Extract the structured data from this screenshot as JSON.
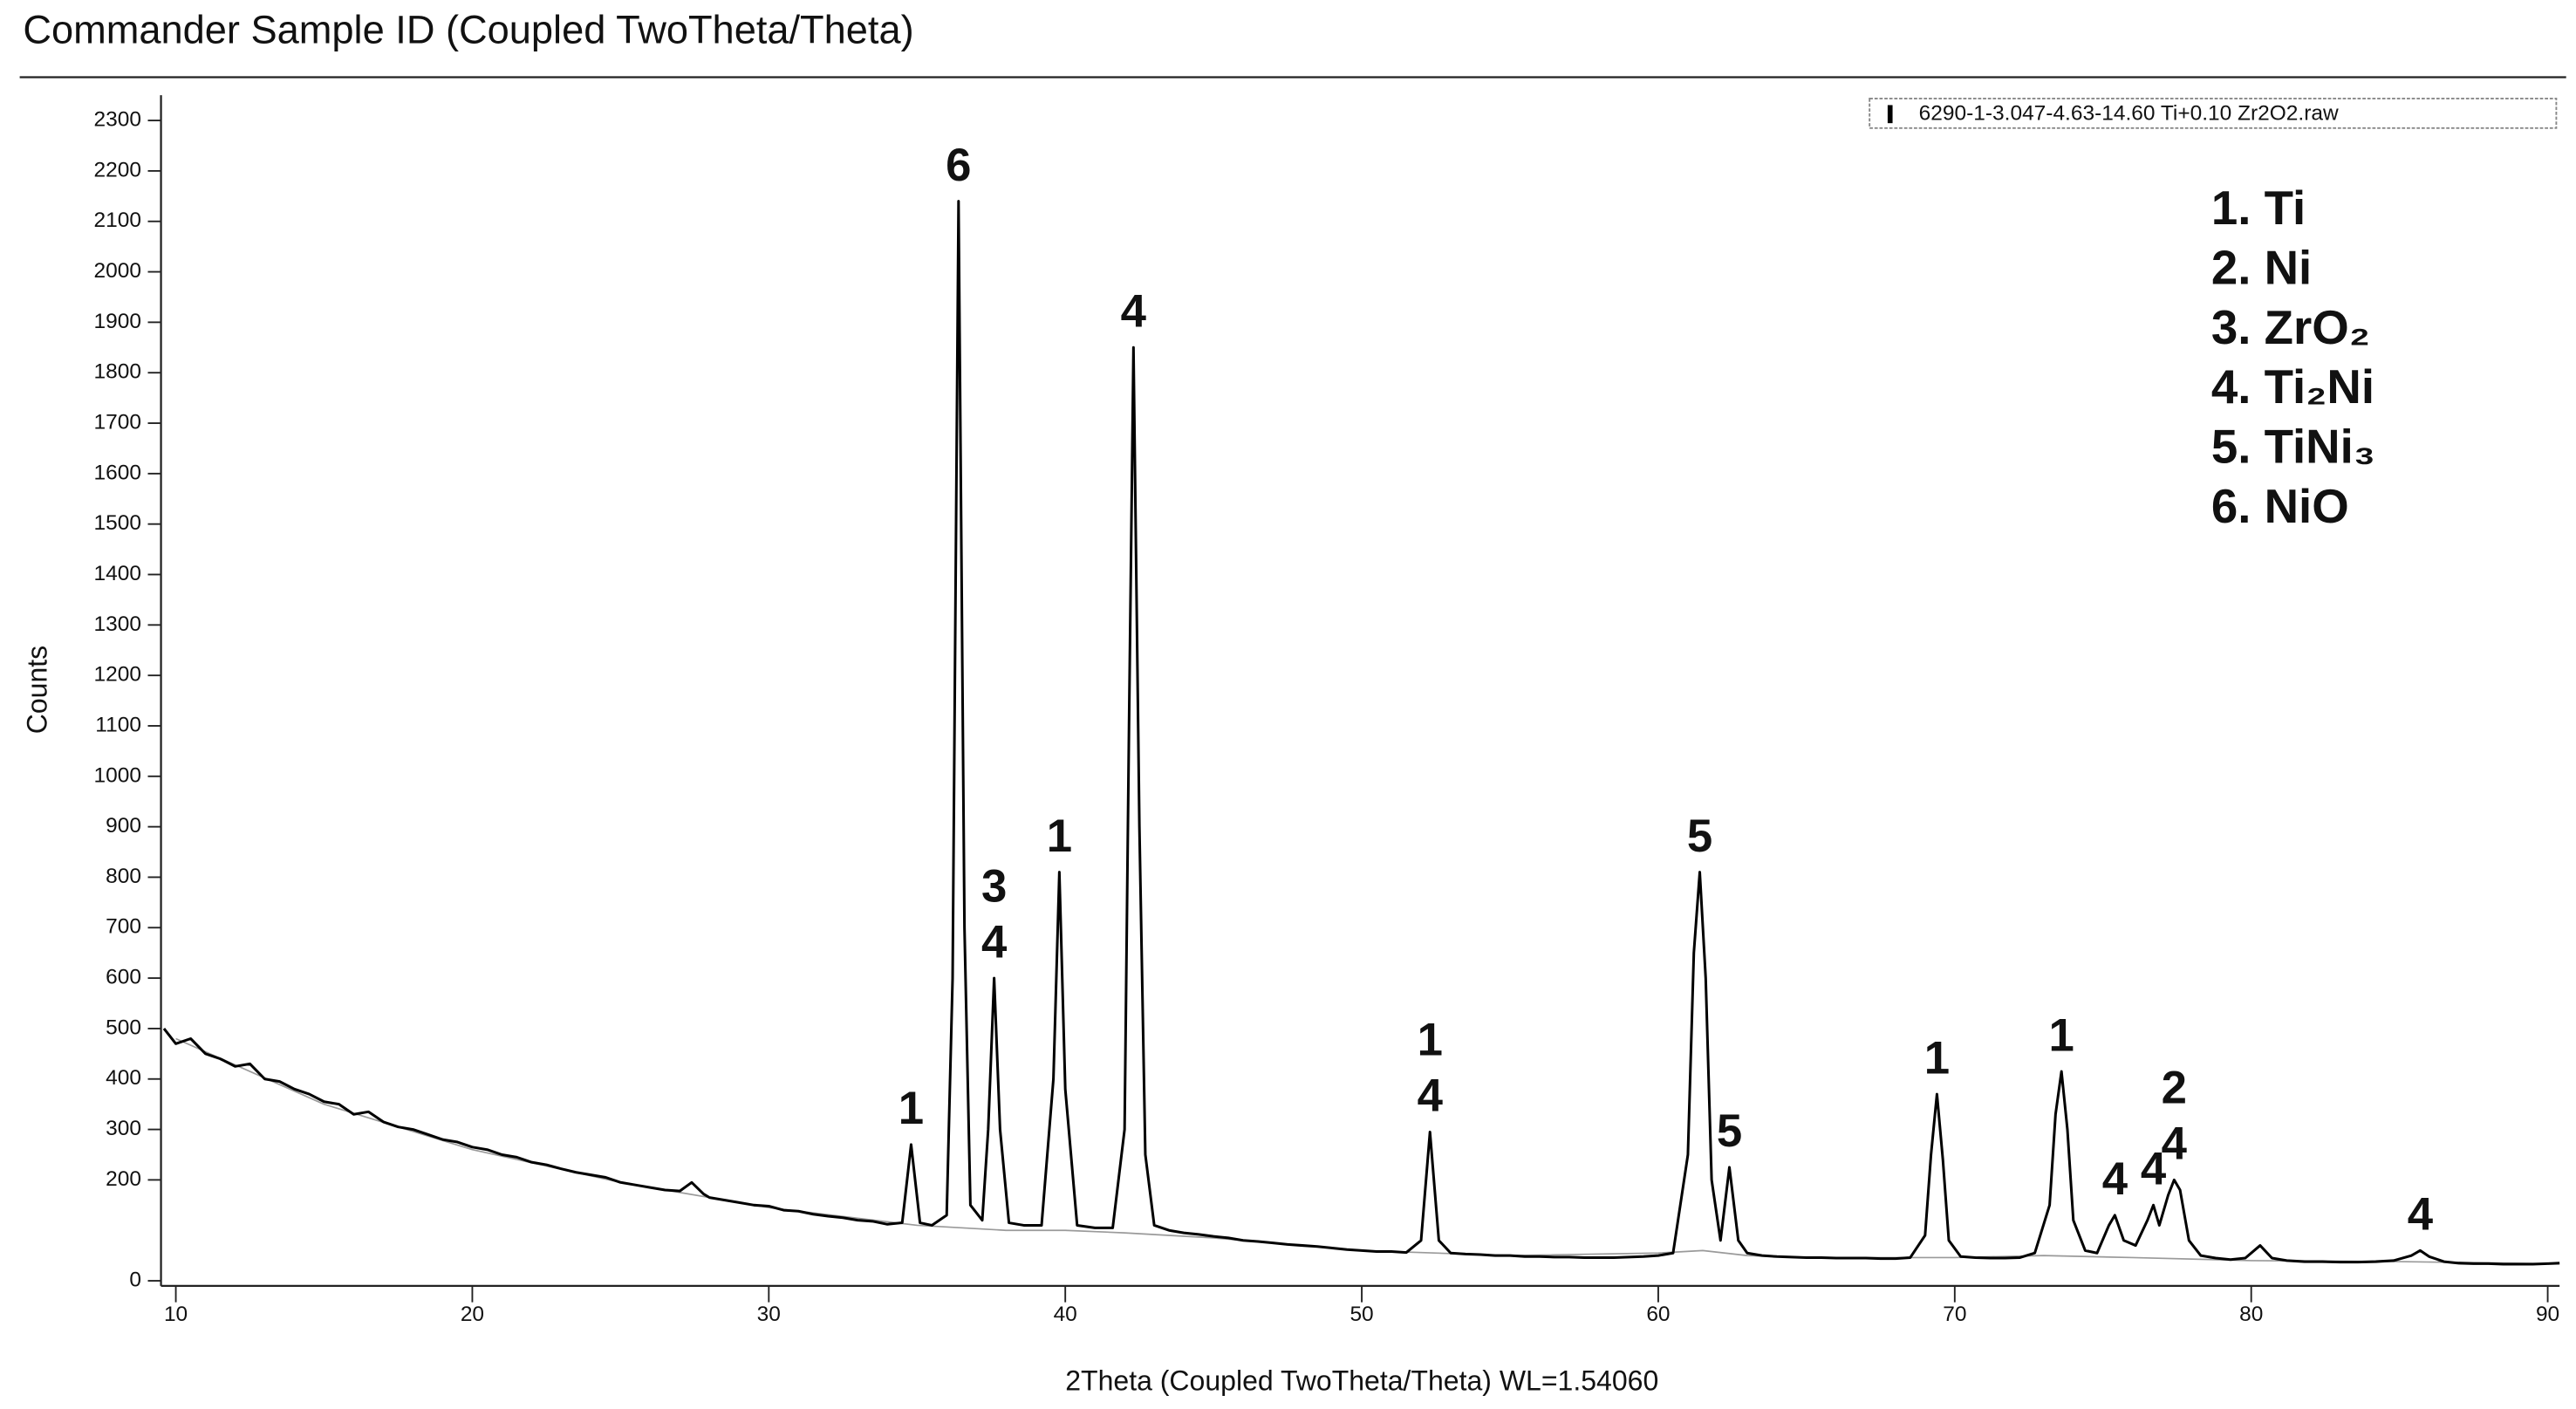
{
  "chart_data": {
    "type": "line",
    "title": "Commander Sample ID (Coupled TwoTheta/Theta)",
    "x_label": "2Theta (Coupled TwoTheta/Theta) WL=1.54060",
    "y_label": "Counts",
    "xlim": [
      9.5,
      90.4
    ],
    "ylim": [
      -10,
      2350
    ],
    "xticks": [
      10,
      20,
      30,
      40,
      50,
      60,
      70,
      80,
      90
    ],
    "yticks": [
      0,
      200,
      300,
      400,
      500,
      600,
      700,
      800,
      900,
      1000,
      1100,
      1200,
      1300,
      1400,
      1500,
      1600,
      1700,
      1800,
      1900,
      2000,
      2100,
      2200,
      2300
    ],
    "series": [
      {
        "name": "6290-1-3.047-4.63-14.60 Ti+0.10 Zr2O2.raw",
        "color": "#000000",
        "x": [
          9.6,
          10,
          10.5,
          11,
          11.5,
          12,
          12.5,
          13,
          13.5,
          14,
          14.5,
          15,
          15.5,
          16,
          16.5,
          17,
          17.5,
          18,
          18.5,
          19,
          19.5,
          20,
          20.5,
          21,
          21.5,
          22,
          22.5,
          23,
          23.5,
          24,
          24.5,
          25,
          25.5,
          26,
          26.5,
          27,
          27.4,
          27.8,
          28,
          28.5,
          29,
          29.5,
          30,
          30.5,
          31,
          31.5,
          32,
          32.5,
          33,
          33.5,
          34,
          34.5,
          34.8,
          35.1,
          35.5,
          36,
          36.2,
          36.4,
          36.6,
          36.8,
          37.2,
          37.4,
          37.6,
          37.8,
          38.1,
          38.6,
          39.2,
          39.6,
          39.8,
          40,
          40.4,
          41,
          41.6,
          42,
          42.15,
          42.3,
          42.5,
          42.7,
          43,
          43.5,
          44,
          44.5,
          45,
          45.5,
          46,
          46.5,
          47,
          47.5,
          48,
          48.5,
          49,
          49.5,
          50,
          50.5,
          51,
          51.5,
          52,
          52.3,
          52.6,
          53,
          53.5,
          54,
          54.5,
          55,
          55.5,
          56,
          56.5,
          57,
          57.5,
          58,
          58.5,
          59,
          59.5,
          60,
          60.5,
          61,
          61.2,
          61.4,
          61.6,
          61.8,
          62.1,
          62.4,
          62.7,
          63,
          63.5,
          64,
          64.5,
          65,
          65.5,
          66,
          66.5,
          67,
          67.5,
          68,
          68.5,
          69,
          69.2,
          69.4,
          69.6,
          69.8,
          70.2,
          70.7,
          71.2,
          71.7,
          72.2,
          72.7,
          73.2,
          73.4,
          73.6,
          73.8,
          74,
          74.4,
          74.8,
          75.2,
          75.4,
          75.7,
          76.1,
          76.5,
          76.7,
          76.9,
          77.2,
          77.4,
          77.6,
          77.9,
          78.3,
          78.8,
          79.3,
          79.8,
          80.3,
          80.7,
          81.2,
          81.8,
          82.4,
          83,
          83.6,
          84.2,
          84.8,
          85.4,
          85.7,
          86,
          86.5,
          87,
          87.5,
          88,
          88.5,
          89,
          89.5,
          90,
          90.4
        ],
        "values": [
          500,
          470,
          480,
          450,
          440,
          425,
          430,
          400,
          395,
          380,
          370,
          355,
          350,
          330,
          335,
          315,
          305,
          300,
          290,
          280,
          275,
          265,
          260,
          250,
          245,
          235,
          230,
          222,
          215,
          210,
          205,
          195,
          190,
          185,
          180,
          178,
          195,
          172,
          165,
          160,
          155,
          150,
          148,
          140,
          138,
          132,
          128,
          125,
          120,
          118,
          112,
          115,
          270,
          115,
          110,
          130,
          600,
          2140,
          700,
          150,
          120,
          300,
          600,
          300,
          115,
          110,
          110,
          400,
          810,
          380,
          110,
          105,
          105,
          300,
          1100,
          1850,
          900,
          250,
          110,
          100,
          95,
          92,
          88,
          85,
          80,
          78,
          75,
          72,
          70,
          68,
          65,
          62,
          60,
          58,
          58,
          56,
          80,
          295,
          80,
          55,
          53,
          52,
          50,
          50,
          48,
          48,
          47,
          47,
          46,
          46,
          46,
          47,
          48,
          50,
          55,
          250,
          650,
          810,
          600,
          200,
          80,
          225,
          80,
          55,
          50,
          48,
          47,
          46,
          46,
          45,
          45,
          45,
          44,
          44,
          46,
          90,
          250,
          370,
          240,
          80,
          48,
          46,
          45,
          45,
          46,
          55,
          150,
          330,
          415,
          300,
          120,
          60,
          55,
          110,
          130,
          80,
          70,
          120,
          150,
          110,
          170,
          200,
          180,
          80,
          50,
          45,
          42,
          45,
          70,
          45,
          40,
          38,
          38,
          37,
          37,
          38,
          40,
          50,
          60,
          48,
          38,
          35,
          34,
          34,
          33,
          33,
          33,
          34,
          35
        ]
      },
      {
        "color": "#9a9a9a",
        "x": [
          10,
          15,
          20,
          25,
          30,
          35,
          38,
          40,
          42,
          45,
          50,
          55,
          60,
          61.5,
          63,
          65,
          70,
          73,
          76,
          80,
          85,
          90
        ],
        "values": [
          480,
          350,
          260,
          195,
          145,
          110,
          100,
          100,
          95,
          85,
          60,
          50,
          55,
          60,
          50,
          46,
          46,
          50,
          46,
          40,
          38,
          34
        ]
      }
    ],
    "annotations": [
      {
        "x": 34.8,
        "labels": [
          "1"
        ]
      },
      {
        "x": 36.4,
        "labels": [
          "6"
        ]
      },
      {
        "x": 37.6,
        "labels": [
          "3",
          "4"
        ]
      },
      {
        "x": 39.8,
        "labels": [
          "1"
        ]
      },
      {
        "x": 42.3,
        "labels": [
          "4"
        ]
      },
      {
        "x": 52.3,
        "labels": [
          "1",
          "4"
        ]
      },
      {
        "x": 61.4,
        "labels": [
          "5"
        ]
      },
      {
        "x": 62.4,
        "labels": [
          "5"
        ]
      },
      {
        "x": 69.4,
        "labels": [
          "1"
        ]
      },
      {
        "x": 73.6,
        "labels": [
          "1"
        ]
      },
      {
        "x": 75.4,
        "labels": [
          "4"
        ]
      },
      {
        "x": 76.7,
        "labels": [
          "4"
        ]
      },
      {
        "x": 77.4,
        "labels": [
          "2",
          "4"
        ]
      },
      {
        "x": 85.7,
        "labels": [
          "4"
        ]
      }
    ],
    "phases": [
      "1. Ti",
      "2. Ni",
      "3. ZrO₂",
      "4. Ti₂Ni",
      "5. TiNi₃",
      "6. NiO"
    ]
  }
}
